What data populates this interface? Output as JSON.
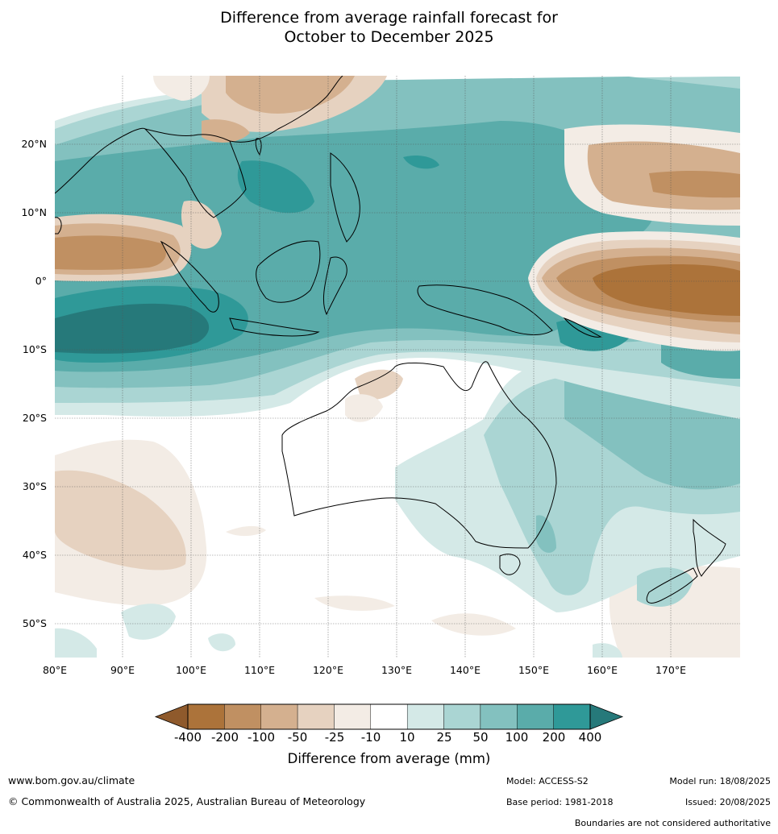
{
  "title": {
    "line1": "Difference from average rainfall forecast for",
    "line2": "October to December 2025"
  },
  "map": {
    "lon_range": [
      80,
      180
    ],
    "lat_range": [
      -55,
      30
    ],
    "lat_labels": [
      "20°N",
      "10°N",
      "0°",
      "10°S",
      "20°S",
      "30°S",
      "40°S",
      "50°S"
    ],
    "lon_labels": [
      "80°E",
      "90°E",
      "100°E",
      "110°E",
      "120°E",
      "130°E",
      "140°E",
      "150°E",
      "160°E",
      "170°E"
    ]
  },
  "legend": {
    "title": "Difference from average (mm)",
    "ticks": [
      "-400",
      "-200",
      "-100",
      "-50",
      "-25",
      "-10",
      "10",
      "25",
      "50",
      "100",
      "200",
      "400"
    ],
    "colors": {
      "dry_extend": "#8f5a2c",
      "dry": [
        "#ac733a",
        "#c09062",
        "#d4b08f",
        "#e6d2c0",
        "#f3ece5"
      ],
      "neutral": "#ffffff",
      "wet": [
        "#d4e9e7",
        "#aad5d3",
        "#83c1bf",
        "#5aacaa",
        "#2f9998"
      ],
      "wet_extend": "#26797a"
    }
  },
  "footer": {
    "website": "www.bom.gov.au/climate",
    "copyright": "© Commonwealth of Australia 2025, Australian Bureau of Meteorology",
    "model": "Model: ACCESS-S2",
    "base_period": "Base period: 1981-2018",
    "model_run": "Model run: 18/08/2025",
    "issued": "Issued: 20/08/2025",
    "disclaimer": "Boundaries are not considered authoritative"
  }
}
